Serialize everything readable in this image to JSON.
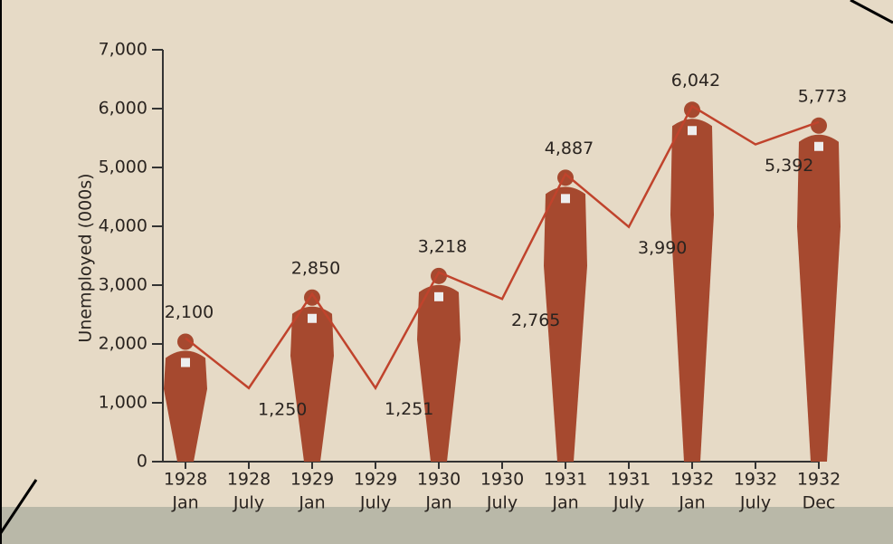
{
  "chart_data": {
    "type": "line",
    "y_label": "Unemployed (000s)",
    "categories": [
      [
        "1928",
        "Jan"
      ],
      [
        "1928",
        "July"
      ],
      [
        "1929",
        "Jan"
      ],
      [
        "1929",
        "July"
      ],
      [
        "1930",
        "Jan"
      ],
      [
        "1930",
        "July"
      ],
      [
        "1931",
        "Jan"
      ],
      [
        "1931",
        "July"
      ],
      [
        "1932",
        "Jan"
      ],
      [
        "1932",
        "July"
      ],
      [
        "1932",
        "Dec"
      ]
    ],
    "values": [
      2100,
      1250,
      2850,
      1251,
      3218,
      2765,
      4887,
      3990,
      6042,
      5392,
      5773
    ],
    "value_labels": [
      "2,100",
      "1,250",
      "2,850",
      "1,251",
      "3,218",
      "2,765",
      "4,887",
      "3,990",
      "6,042",
      "5,392",
      "5,773"
    ],
    "color": "#c0432c",
    "figure_color": "#a6492f",
    "ylim": [
      0,
      7000
    ],
    "yticks": [
      0,
      {
        "value": 1000,
        "label": "1,000"
      },
      {
        "value": 2000,
        "label": "2,000"
      },
      {
        "value": 3000,
        "label": "3,000"
      },
      {
        "value": 4000,
        "label": "4,000"
      },
      {
        "value": 5000,
        "label": "5,000"
      },
      {
        "value": 6000,
        "label": "6,000"
      },
      {
        "value": 7000,
        "label": "7,000"
      }
    ]
  }
}
